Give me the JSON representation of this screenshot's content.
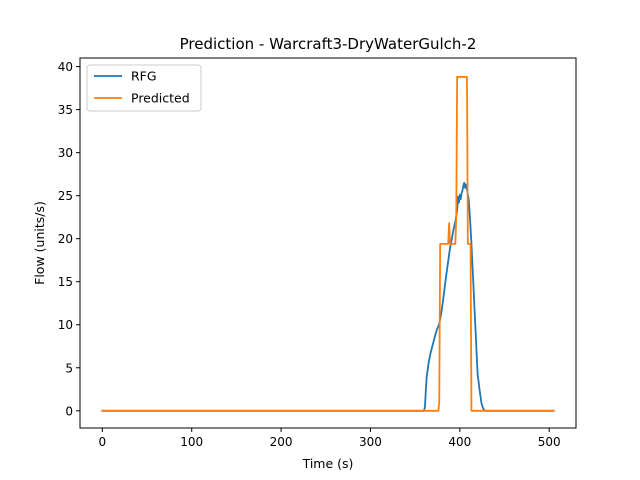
{
  "chart_data": {
    "type": "line",
    "title": "Prediction - Warcraft3-DryWaterGulch-2",
    "xlabel": "Time (s)",
    "ylabel": "Flow (units/s)",
    "xlim": [
      -25,
      530
    ],
    "ylim": [
      -2,
      41
    ],
    "xticks": [
      0,
      100,
      200,
      300,
      400,
      500
    ],
    "yticks": [
      0,
      5,
      10,
      15,
      20,
      25,
      30,
      35,
      40
    ],
    "xtick_labels": [
      "0",
      "100",
      "200",
      "300",
      "400",
      "500"
    ],
    "ytick_labels": [
      "0",
      "5",
      "10",
      "15",
      "20",
      "25",
      "30",
      "35",
      "40"
    ],
    "grid": false,
    "legend_position": "upper-left",
    "series": [
      {
        "name": "RFG",
        "color": "#1f77b4",
        "x": [
          0,
          360,
          361,
          362,
          363,
          365,
          367,
          369,
          371,
          373,
          375,
          377,
          379,
          381,
          383,
          385,
          387,
          389,
          391,
          393,
          395,
          397,
          398,
          399,
          400,
          401,
          402,
          403,
          404,
          405,
          406,
          407,
          408,
          409,
          410,
          411,
          412,
          413,
          414,
          415,
          416,
          417,
          418,
          419,
          420,
          421,
          422,
          423,
          424,
          425,
          426,
          427,
          428,
          430,
          505
        ],
        "y": [
          0,
          0,
          0.5,
          2.5,
          4,
          5.5,
          6.6,
          7.4,
          8.2,
          9.0,
          9.6,
          10.1,
          11.2,
          12.6,
          14.3,
          15.9,
          17.4,
          18.9,
          20.0,
          21.1,
          22.0,
          23.3,
          24.9,
          24.2,
          25.1,
          24.6,
          25.3,
          25.6,
          26.2,
          26.5,
          25.9,
          26.3,
          25.7,
          25.2,
          24.5,
          23.0,
          21.3,
          19.4,
          17.2,
          15.1,
          12.8,
          10.6,
          8.5,
          6.2,
          4.1,
          3.4,
          2.5,
          1.8,
          1.0,
          0.6,
          0.3,
          0.1,
          0,
          0,
          0
        ]
      },
      {
        "name": "Predicted",
        "color": "#ff7f0e",
        "x": [
          0,
          376,
          377,
          378,
          379,
          380,
          381,
          383,
          385,
          387,
          388,
          389,
          390,
          391,
          393,
          395,
          396,
          397,
          398,
          399,
          400,
          403,
          405,
          407,
          408,
          409,
          410,
          411,
          412,
          413,
          414,
          505
        ],
        "y": [
          0,
          0,
          1.0,
          19.4,
          19.4,
          19.4,
          19.4,
          19.4,
          19.4,
          19.4,
          21.8,
          19.4,
          19.4,
          19.4,
          19.4,
          19.4,
          22.5,
          38.8,
          38.8,
          38.8,
          38.8,
          38.8,
          38.8,
          38.8,
          38.8,
          19.4,
          19.4,
          19.4,
          19.4,
          0,
          0,
          0
        ]
      }
    ]
  }
}
